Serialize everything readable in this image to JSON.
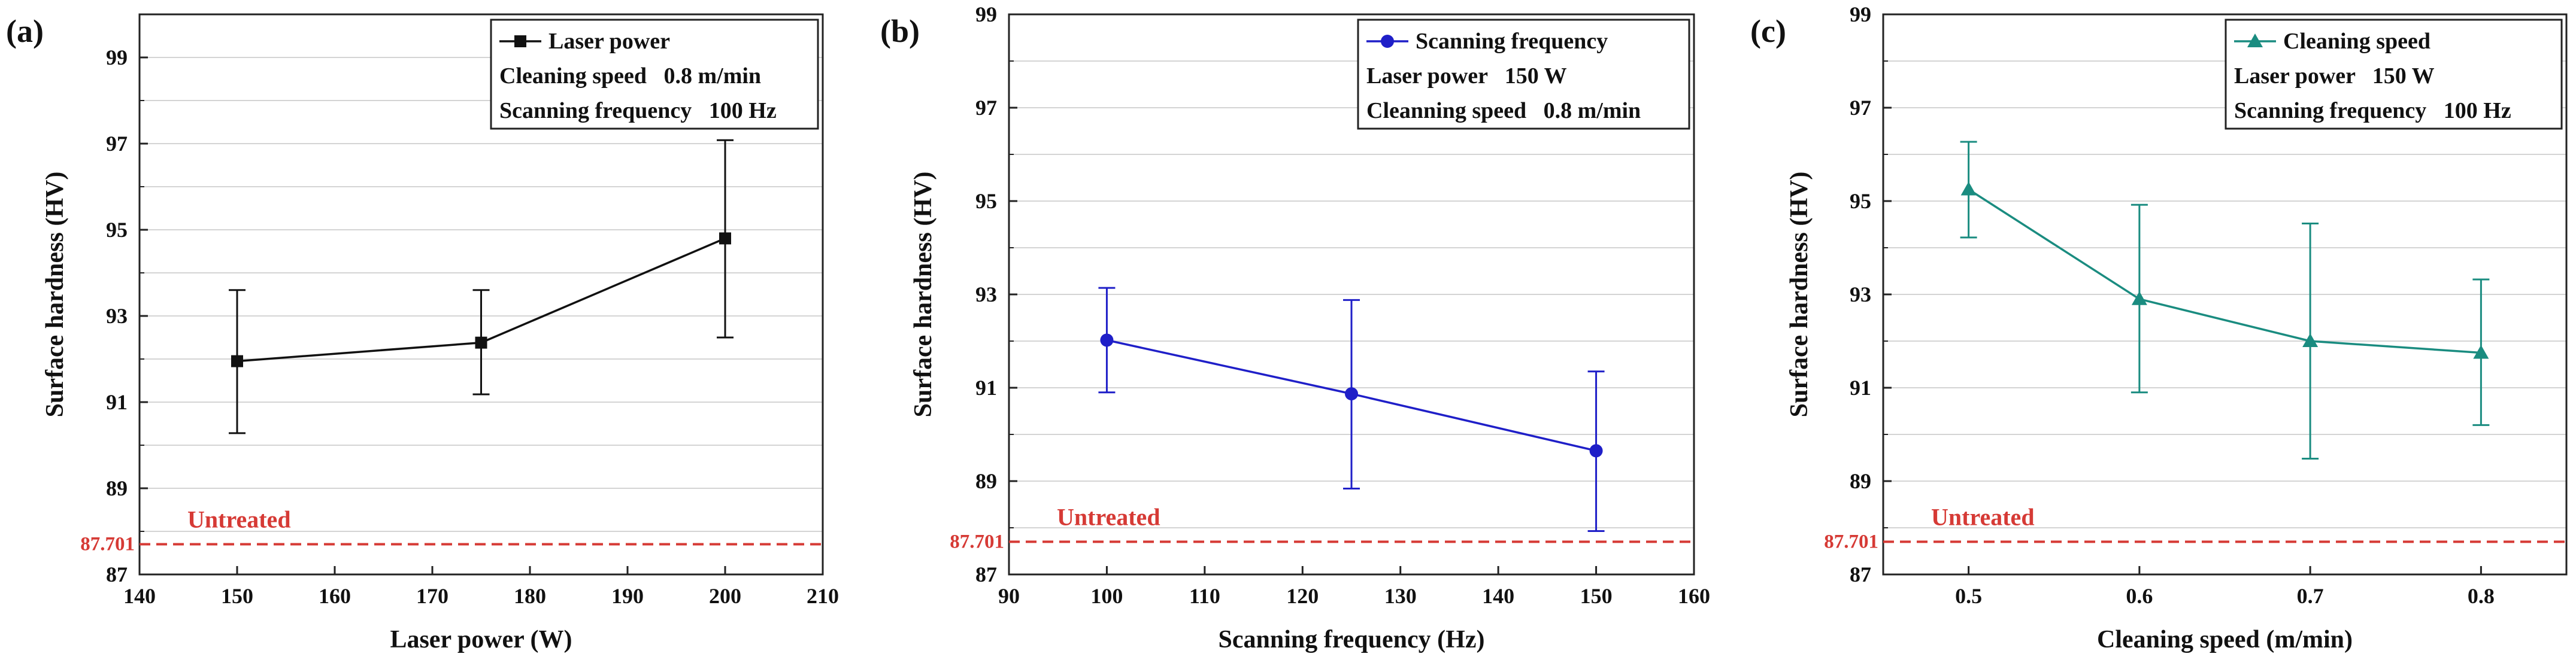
{
  "chart_data": [
    {
      "type": "line",
      "panel_label": "(a)",
      "xlabel": "Laser power (W)",
      "ylabel": "Surface hardness (HV)",
      "xlim": [
        140,
        210
      ],
      "ylim": [
        87,
        100
      ],
      "xticks": [
        140,
        150,
        160,
        170,
        180,
        190,
        200,
        210
      ],
      "yticks": [
        87,
        89,
        91,
        93,
        95,
        97,
        99
      ],
      "x": [
        150,
        175,
        200
      ],
      "series": [
        {
          "name": "Laser power",
          "marker": "square",
          "color": "#111111",
          "values": [
            91.95,
            92.38,
            94.8
          ],
          "err_low": [
            90.28,
            91.18,
            92.5
          ],
          "err_high": [
            93.6,
            93.6,
            97.08
          ]
        }
      ],
      "legend_conditions": [
        "Cleaning speed   0.8 m/min",
        "Scanning frequency   100 Hz"
      ],
      "reference": {
        "label": "Untreated",
        "value": 87.701,
        "value_label": "87.701",
        "color": "#d63a35"
      }
    },
    {
      "type": "line",
      "panel_label": "(b)",
      "xlabel": "Scanning frequency (Hz)",
      "ylabel": "Surface hardness (HV)",
      "xlim": [
        90,
        160
      ],
      "ylim": [
        87,
        99
      ],
      "xticks": [
        90,
        100,
        110,
        120,
        130,
        140,
        150,
        160
      ],
      "yticks": [
        87,
        89,
        91,
        93,
        95,
        97,
        99
      ],
      "x": [
        100,
        125,
        150
      ],
      "series": [
        {
          "name": "Scanning frequency",
          "marker": "circle",
          "color": "#1f1fc8",
          "values": [
            92.02,
            90.87,
            89.65
          ],
          "err_low": [
            90.9,
            88.84,
            87.93
          ],
          "err_high": [
            93.14,
            92.88,
            91.35
          ]
        }
      ],
      "legend_conditions": [
        "Laser power   150 W",
        "Cleanning speed   0.8 m/min"
      ],
      "reference": {
        "label": "Untreated",
        "value": 87.701,
        "value_label": "87.701",
        "color": "#d63a35"
      }
    },
    {
      "type": "line",
      "panel_label": "(c)",
      "xlabel": "Cleaning speed (m/min)",
      "ylabel": "Surface hardness (HV)",
      "xlim": [
        0.45,
        0.85
      ],
      "ylim": [
        87,
        99
      ],
      "xticks": [
        0.5,
        0.6,
        0.7,
        0.8
      ],
      "yticks": [
        87,
        89,
        91,
        93,
        95,
        97,
        99
      ],
      "x": [
        0.5,
        0.6,
        0.7,
        0.8
      ],
      "series": [
        {
          "name": "Cleaning speed",
          "marker": "triangle",
          "color": "#1a8c80",
          "values": [
            95.25,
            92.9,
            92.0,
            91.75
          ],
          "err_low": [
            94.22,
            90.9,
            89.48,
            90.2
          ],
          "err_high": [
            96.27,
            94.92,
            94.52,
            93.32
          ]
        }
      ],
      "legend_conditions": [
        "Laser power   150 W",
        "Scanning frequency   100 Hz"
      ],
      "reference": {
        "label": "Untreated",
        "value": 87.701,
        "value_label": "87.701",
        "color": "#d63a35"
      }
    }
  ]
}
